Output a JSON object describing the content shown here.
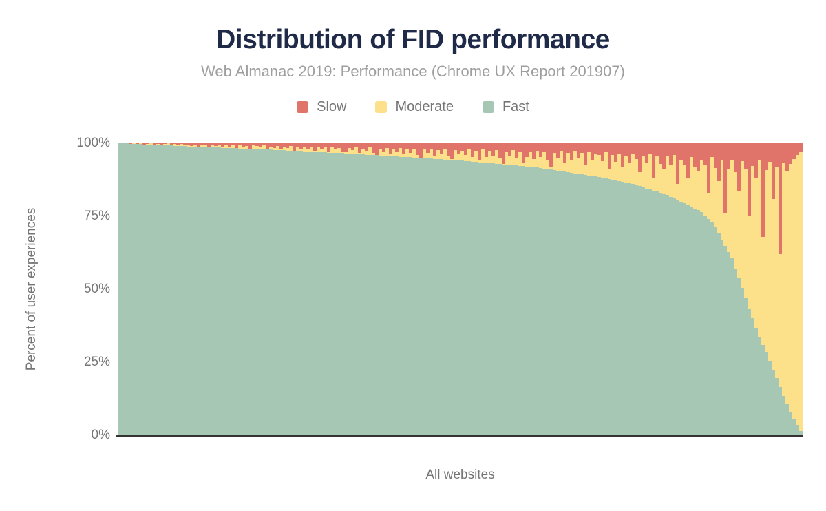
{
  "chart_data": {
    "type": "bar",
    "stacked": true,
    "title": "Distribution of FID performance",
    "subtitle": "Web Almanac 2019: Performance (Chrome UX Report 201907)",
    "xlabel": "All websites",
    "ylabel": "Percent of user experiences",
    "ylim": [
      0,
      100
    ],
    "grid": false,
    "legend_position": "top-center",
    "yticks": [
      {
        "label": "100%",
        "value": 100
      },
      {
        "label": "75%",
        "value": 75
      },
      {
        "label": "50%",
        "value": 50
      },
      {
        "label": "25%",
        "value": 25
      },
      {
        "label": "0%",
        "value": 0
      }
    ],
    "legend": [
      {
        "key": "slow",
        "label": "Slow"
      },
      {
        "key": "moderate",
        "label": "Moderate"
      },
      {
        "key": "fast",
        "label": "Fast"
      }
    ],
    "colors": {
      "slow": "#e0736a",
      "moderate": "#fce08a",
      "fast": "#a6c7b3",
      "title": "#1e2a47",
      "subtitle": "#9e9e9e",
      "axis_text": "#757575",
      "legend_text": "#757575",
      "axis_line": "#333333"
    },
    "stack_order_bottom_to_top": [
      "fast",
      "moderate",
      "slow"
    ],
    "moderate_rule": "100 - fast - slow",
    "bars": {
      "fast": [
        100.0,
        99.9,
        99.9,
        99.8,
        99.8,
        99.7,
        99.7,
        99.6,
        99.6,
        99.5,
        99.4,
        99.4,
        99.3,
        99.3,
        99.2,
        99.2,
        99.1,
        99.1,
        99.0,
        99.0,
        98.9,
        98.9,
        98.8,
        98.8,
        98.7,
        98.7,
        98.6,
        98.6,
        98.5,
        98.5,
        98.4,
        98.4,
        98.4,
        98.3,
        98.3,
        98.2,
        98.2,
        98.1,
        98.1,
        98.0,
        98.0,
        97.9,
        97.9,
        97.8,
        97.8,
        97.7,
        97.7,
        97.6,
        97.6,
        97.5,
        97.4,
        97.4,
        97.3,
        97.3,
        97.2,
        97.2,
        97.1,
        97.1,
        97.0,
        97.0,
        96.9,
        96.8,
        96.8,
        96.7,
        96.6,
        96.6,
        96.5,
        96.4,
        96.4,
        96.3,
        96.2,
        96.2,
        96.1,
        96.0,
        96.0,
        95.9,
        95.8,
        95.8,
        95.7,
        95.6,
        95.6,
        95.5,
        95.4,
        95.4,
        95.3,
        95.2,
        95.1,
        95.0,
        95.0,
        94.9,
        94.8,
        94.7,
        94.6,
        94.6,
        94.5,
        94.4,
        94.3,
        94.2,
        94.2,
        94.1,
        94.0,
        93.9,
        93.8,
        93.7,
        93.6,
        93.5,
        93.4,
        93.3,
        93.2,
        93.1,
        93.0,
        92.9,
        92.8,
        92.7,
        92.6,
        92.5,
        92.4,
        92.3,
        92.2,
        92.1,
        92.0,
        91.8,
        91.7,
        91.5,
        91.3,
        91.1,
        91.0,
        90.8,
        90.6,
        90.4,
        90.3,
        90.1,
        89.9,
        89.7,
        89.6,
        89.4,
        89.2,
        89.0,
        88.9,
        88.7,
        88.5,
        88.3,
        88.0,
        87.8,
        87.5,
        87.3,
        87.0,
        86.8,
        86.5,
        86.3,
        86.0,
        85.6,
        85.3,
        84.9,
        84.5,
        84.2,
        83.8,
        83.4,
        83.0,
        82.7,
        82.3,
        81.7,
        81.1,
        80.6,
        80.0,
        79.4,
        78.8,
        78.3,
        77.7,
        77.1,
        76.5,
        75.3,
        74.0,
        72.8,
        71.5,
        69.3,
        67.1,
        64.9,
        62.7,
        60.5,
        57.1,
        53.8,
        50.4,
        47.0,
        43.5,
        40.0,
        36.5,
        33.5,
        31.0,
        28.5,
        25.5,
        22.5,
        19.5,
        16.5,
        13.5,
        10.5,
        8.0,
        5.5,
        3.5,
        1.5
      ],
      "slow": [
        0.0,
        0.1,
        0.0,
        0.2,
        0.1,
        0.3,
        0.1,
        0.4,
        0.2,
        0.1,
        0.5,
        0.2,
        0.6,
        0.3,
        0.1,
        0.7,
        0.3,
        0.5,
        0.2,
        0.8,
        0.4,
        0.9,
        0.5,
        1.1,
        0.6,
        0.8,
        1.3,
        0.5,
        1.0,
        0.7,
        1.4,
        0.6,
        1.1,
        0.8,
        1.6,
        0.7,
        1.2,
        0.9,
        1.8,
        0.8,
        1.0,
        1.5,
        0.8,
        2.0,
        1.1,
        1.6,
        0.9,
        2.2,
        1.2,
        1.7,
        1.0,
        2.5,
        1.3,
        1.8,
        1.1,
        2.1,
        1.4,
        2.6,
        1.2,
        1.9,
        1.5,
        2.8,
        1.3,
        2.2,
        1.6,
        3.0,
        3.0,
        1.7,
        2.4,
        1.4,
        3.2,
        1.8,
        2.6,
        1.5,
        3.4,
        4.0,
        1.9,
        2.8,
        1.6,
        3.6,
        2.0,
        3.0,
        1.7,
        3.8,
        2.1,
        3.2,
        1.8,
        4.0,
        5.0,
        2.2,
        3.4,
        1.9,
        4.2,
        2.3,
        3.6,
        2.0,
        4.4,
        5.5,
        2.4,
        3.8,
        2.5,
        4.0,
        2.1,
        4.6,
        2.6,
        6.0,
        2.2,
        4.8,
        2.7,
        4.2,
        2.3,
        5.0,
        7.0,
        2.8,
        4.4,
        2.4,
        5.2,
        2.9,
        6.8,
        4.6,
        3.0,
        5.4,
        2.5,
        4.8,
        3.1,
        5.6,
        8.0,
        3.2,
        5.0,
        2.6,
        6.5,
        3.3,
        5.8,
        2.7,
        5.2,
        3.4,
        7.5,
        2.8,
        6.0,
        3.5,
        4.0,
        6.2,
        2.9,
        9.0,
        4.1,
        6.4,
        3.6,
        8.0,
        4.2,
        6.6,
        3.7,
        5.4,
        10.0,
        4.3,
        6.8,
        3.8,
        12.0,
        4.4,
        7.0,
        9.0,
        4.5,
        7.2,
        3.9,
        14.0,
        5.6,
        7.4,
        12.0,
        4.6,
        8.0,
        9.5,
        5.7,
        7.6,
        17.0,
        4.7,
        8.4,
        13.0,
        5.8,
        24.0,
        8.8,
        6.0,
        10.0,
        16.5,
        6.2,
        9.0,
        25.0,
        7.8,
        12.0,
        5.9,
        32.0,
        9.2,
        6.4,
        19.0,
        8.0,
        38.0,
        6.6,
        9.4,
        7.0,
        5.5,
        4.0,
        3.0
      ]
    }
  }
}
